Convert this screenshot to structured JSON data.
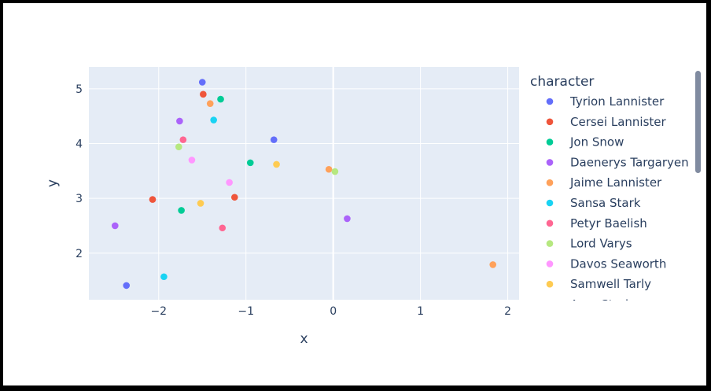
{
  "chart_data": {
    "type": "scatter",
    "xlabel": "x",
    "ylabel": "y",
    "xlim": [
      -2.8,
      2.13
    ],
    "ylim": [
      1.15,
      5.4
    ],
    "xticks": [
      -2,
      -1,
      0,
      1,
      2
    ],
    "yticks": [
      2,
      3,
      4,
      5
    ],
    "grid": true,
    "plot_background": "#e5ecf6",
    "legend": {
      "title": "character",
      "placement": "right",
      "scrollable": true
    },
    "series": [
      {
        "name": "Tyrion Lannister",
        "color": "#636efa",
        "points": [
          [
            -1.5,
            5.12
          ],
          [
            -0.68,
            4.07
          ],
          [
            -2.37,
            1.41
          ]
        ]
      },
      {
        "name": "Cersei Lannister",
        "color": "#EF553B",
        "points": [
          [
            -1.49,
            4.9
          ],
          [
            -2.07,
            2.98
          ],
          [
            -1.13,
            3.02
          ]
        ]
      },
      {
        "name": "Jon Snow",
        "color": "#00cc96",
        "points": [
          [
            -1.29,
            4.81
          ],
          [
            -0.95,
            3.65
          ],
          [
            -1.74,
            2.78
          ]
        ]
      },
      {
        "name": "Daenerys Targaryen",
        "color": "#ab63fa",
        "points": [
          [
            -1.76,
            4.41
          ],
          [
            -2.5,
            2.5
          ],
          [
            0.16,
            2.63
          ]
        ]
      },
      {
        "name": "Jaime Lannister",
        "color": "#FFA15A",
        "points": [
          [
            -1.41,
            4.73
          ],
          [
            -0.05,
            3.53
          ],
          [
            1.83,
            1.79
          ]
        ]
      },
      {
        "name": "Sansa Stark",
        "color": "#19d3f3",
        "points": [
          [
            -1.37,
            4.43
          ],
          [
            -1.94,
            1.57
          ]
        ]
      },
      {
        "name": "Petyr Baelish",
        "color": "#FF6692",
        "points": [
          [
            -1.72,
            4.07
          ],
          [
            -1.27,
            2.46
          ]
        ]
      },
      {
        "name": "Lord Varys",
        "color": "#B6E880",
        "points": [
          [
            -1.77,
            3.94
          ],
          [
            0.02,
            3.49
          ]
        ]
      },
      {
        "name": "Davos Seaworth",
        "color": "#FF97FF",
        "points": [
          [
            -1.62,
            3.7
          ],
          [
            -1.19,
            3.29
          ]
        ]
      },
      {
        "name": "Samwell Tarly",
        "color": "#FECB52",
        "points": [
          [
            -0.65,
            3.62
          ],
          [
            -1.52,
            2.91
          ]
        ]
      },
      {
        "name": "Arya Stark",
        "color": "#636efa",
        "points": []
      }
    ]
  }
}
